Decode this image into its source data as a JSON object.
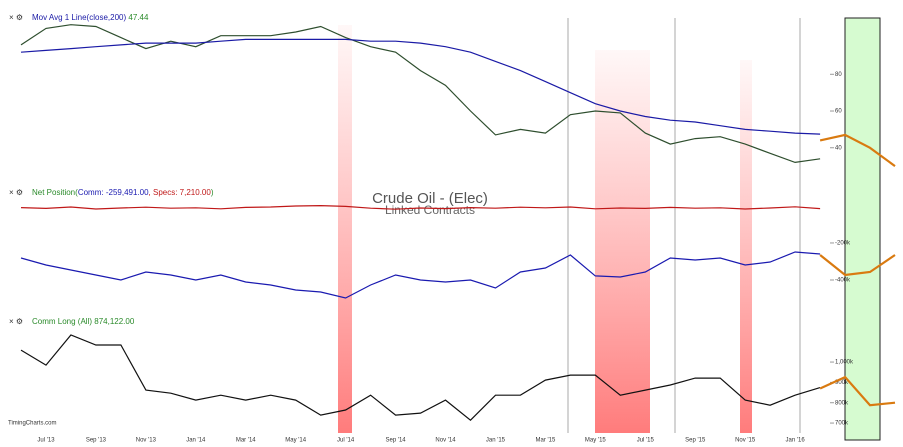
{
  "chart_data": [
    {
      "type": "line",
      "annotations": [
        "Crude Oil - (Elec)",
        "Linked Contracts"
      ],
      "source": "TimingCharts.com",
      "ylim": [
        17,
        115
      ],
      "yticks": [
        40,
        60,
        80
      ],
      "series": [
        {
          "color": "#2e4e2e",
          "values": [
            96,
            105,
            107,
            106,
            100,
            94,
            98,
            95,
            101,
            101,
            101,
            103,
            106,
            100,
            95,
            92,
            82,
            74,
            60,
            47,
            50,
            48,
            58,
            60,
            59,
            48,
            42,
            45,
            46,
            42,
            37,
            32,
            34,
            null,
            null,
            null
          ]
        },
        {
          "name": "Mov Avg 1 Line(close,200)",
          "color": "#1a1aa6",
          "values": [
            92,
            93,
            94,
            95,
            96,
            97,
            97,
            97,
            98,
            99,
            99,
            99,
            99,
            99,
            98,
            98,
            97,
            95,
            92,
            87,
            82,
            76,
            70,
            64,
            60,
            57,
            55,
            54,
            52,
            50,
            49,
            48,
            47.44,
            null,
            null,
            null
          ]
        },
        {
          "color": "#d97a10",
          "values": [
            null,
            null,
            null,
            null,
            null,
            null,
            null,
            null,
            null,
            null,
            null,
            null,
            null,
            null,
            null,
            null,
            null,
            null,
            null,
            null,
            null,
            null,
            null,
            null,
            null,
            null,
            null,
            null,
            null,
            null,
            null,
            null,
            44,
            47,
            40,
            30
          ]
        }
      ]
    },
    {
      "type": "line",
      "title": "Net Position",
      "ylim": [
        -562000,
        86000
      ],
      "yticks": [
        {
          "value": -200000,
          "label": "-200k"
        },
        {
          "value": -400000,
          "label": "-400k"
        }
      ],
      "y2lim": [
        -500000,
        100000
      ],
      "series": [
        {
          "name": "Comm",
          "color": "#1a1ab0",
          "values": [
            -281000,
            -319000,
            -346000,
            -373000,
            -400000,
            -357000,
            -373000,
            -400000,
            -373000,
            -411000,
            -427000,
            -454000,
            -465000,
            -497000,
            -427000,
            -373000,
            -400000,
            -411000,
            -400000,
            -443000,
            -357000,
            -335000,
            -265000,
            -378000,
            -384000,
            -357000,
            -281000,
            -292000,
            -281000,
            -319000,
            -303000,
            -249000,
            -259491,
            null,
            null,
            null
          ],
          "value_labels": [
            null,
            null,
            null,
            null,
            null,
            null,
            null,
            null,
            null,
            null,
            null,
            null,
            null,
            null,
            null,
            null,
            null,
            null,
            null,
            null,
            null,
            null,
            null,
            null,
            null,
            null,
            null,
            null,
            null,
            null,
            null,
            null,
            "-259,491.00",
            null,
            null,
            null
          ]
        },
        {
          "name": "Specs",
          "color": "#c01818",
          "axis": "y2",
          "values": [
            12000,
            8000,
            15000,
            5000,
            10000,
            14000,
            9000,
            11000,
            6000,
            13000,
            15000,
            20000,
            22000,
            18000,
            9000,
            4000,
            10000,
            7000,
            12000,
            9000,
            14000,
            11000,
            15000,
            6000,
            10000,
            8000,
            13000,
            9000,
            11000,
            5000,
            10000,
            16000,
            7210,
            null,
            null,
            null
          ],
          "value_labels": [
            null,
            null,
            null,
            null,
            null,
            null,
            null,
            null,
            null,
            null,
            null,
            null,
            null,
            null,
            null,
            null,
            null,
            null,
            null,
            null,
            null,
            null,
            null,
            null,
            null,
            null,
            null,
            null,
            null,
            null,
            null,
            null,
            "7,210.00",
            null,
            null,
            null
          ]
        },
        {
          "color": "#d97a10",
          "values": [
            null,
            null,
            null,
            null,
            null,
            null,
            null,
            null,
            null,
            null,
            null,
            null,
            null,
            null,
            null,
            null,
            null,
            null,
            null,
            null,
            null,
            null,
            null,
            null,
            null,
            null,
            null,
            null,
            null,
            null,
            null,
            null,
            -265000,
            -373000,
            -357000,
            -265000
          ]
        }
      ]
    },
    {
      "type": "line",
      "categories": [
        null,
        "Jul '13",
        null,
        "Sep '13",
        null,
        "Nov '13",
        null,
        "Jan '14",
        null,
        "Mar '14",
        null,
        "May '14",
        null,
        "Jul '14",
        null,
        "Sep '14",
        null,
        "Nov '14",
        null,
        "Jan '15",
        null,
        "Mar '15",
        null,
        "May '15",
        null,
        "Jul '15",
        null,
        "Sep '15",
        null,
        "Nov '15",
        null,
        "Jan '16",
        null,
        null,
        null,
        null
      ],
      "ylim": [
        656000,
        1256000
      ],
      "yticks": [
        {
          "value": 1000000,
          "label": "1,000k"
        },
        {
          "value": 900000,
          "label": "900k"
        },
        {
          "value": 800000,
          "label": "800k"
        },
        {
          "value": 700000,
          "label": "700k"
        }
      ],
      "series": [
        {
          "name": "Comm Long (All)",
          "color": "#111",
          "values": [
            1059000,
            985000,
            1133000,
            1084000,
            1084000,
            862000,
            847000,
            813000,
            837000,
            813000,
            837000,
            813000,
            739000,
            764000,
            837000,
            739000,
            749000,
            813000,
            714000,
            837000,
            837000,
            911000,
            936000,
            936000,
            837000,
            862000,
            887000,
            921000,
            921000,
            813000,
            788000,
            837000,
            874122,
            null,
            null,
            null
          ],
          "value_labels": [
            null,
            null,
            null,
            null,
            null,
            null,
            null,
            null,
            null,
            null,
            null,
            null,
            null,
            null,
            null,
            null,
            null,
            null,
            null,
            null,
            null,
            null,
            null,
            null,
            null,
            null,
            null,
            null,
            null,
            null,
            null,
            null,
            "874,122.00",
            null,
            null,
            null
          ]
        },
        {
          "color": "#d97a10",
          "values": [
            null,
            null,
            null,
            null,
            null,
            null,
            null,
            null,
            null,
            null,
            null,
            null,
            null,
            null,
            null,
            null,
            null,
            null,
            null,
            null,
            null,
            null,
            null,
            null,
            null,
            null,
            null,
            null,
            null,
            null,
            null,
            null,
            870000,
            926000,
            788000,
            800000
          ]
        }
      ]
    }
  ]
}
